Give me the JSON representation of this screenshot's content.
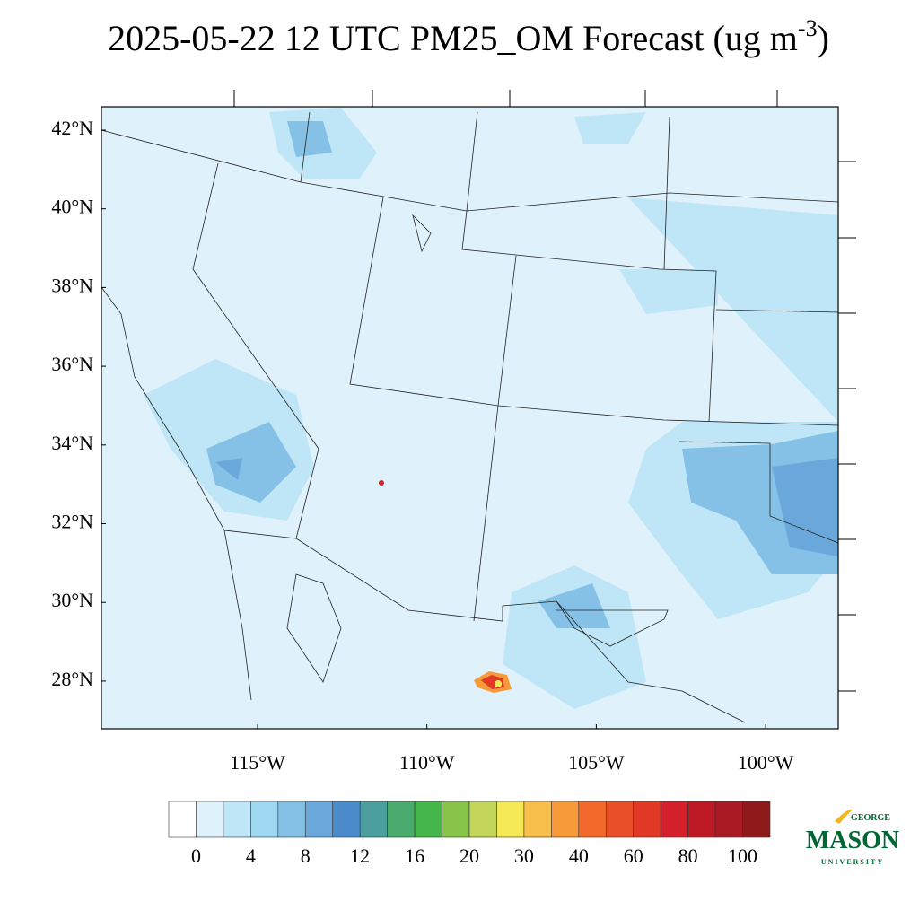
{
  "header": {
    "title": "2025-05-22 12 UTC PM25_OM Forecast (ug m",
    "title_superscript": "-3",
    "title_end": ")"
  },
  "map": {
    "lat_labels": [
      "42°N",
      "40°N",
      "38°N",
      "36°N",
      "34°N",
      "32°N",
      "30°N",
      "28°N"
    ],
    "lon_labels": [
      "115°W",
      "110°W",
      "105°W",
      "100°W"
    ]
  },
  "colorbar": {
    "colors": [
      "#ffffff",
      "#dff1fa",
      "#bfe6f6",
      "#a0d8f1",
      "#85c1e6",
      "#6aa8dc",
      "#4a8ccb",
      "#4b9f9c",
      "#4aab6e",
      "#45b649",
      "#88c44a",
      "#c4d65a",
      "#f6e958",
      "#f8c04a",
      "#f69a3a",
      "#f26a2b",
      "#e8502a",
      "#e03a26",
      "#d4202a",
      "#be1a26",
      "#a81a24",
      "#8f1a1c"
    ],
    "labels": [
      0,
      4,
      8,
      12,
      16,
      20,
      30,
      40,
      60,
      80,
      100
    ]
  },
  "logo": {
    "top": "GEORGE",
    "main": "MASON",
    "bottom": "UNIVERSITY"
  }
}
